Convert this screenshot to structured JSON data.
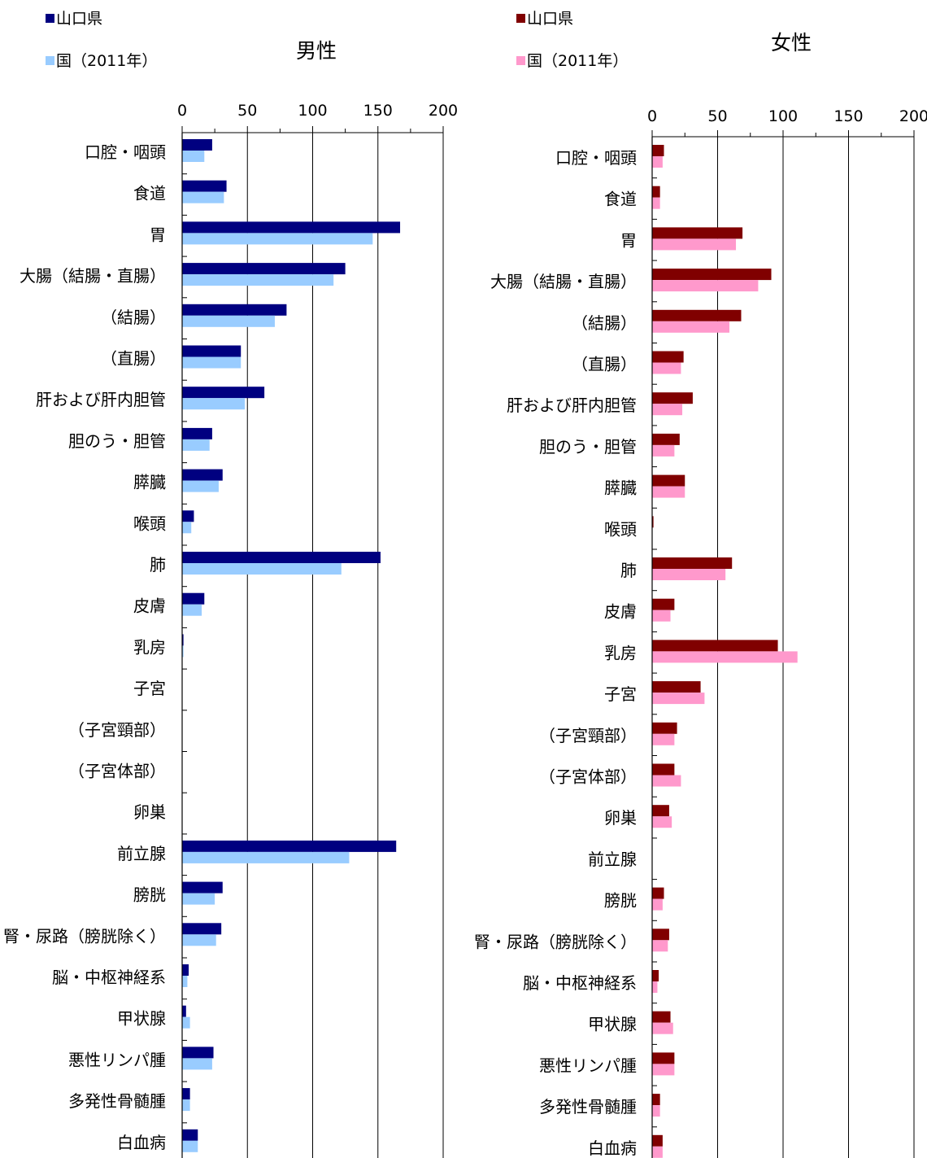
{
  "categories": [
    "口腔・咽頭",
    "食道",
    "胃",
    "大腸（結腸・直腸）",
    "（結腸）",
    "（直腸）",
    "肝および肝内胆管",
    "胆のう・胆管",
    "膵臓",
    "喉頭",
    "肺",
    "皮膚",
    "乳房",
    "子宮",
    "（子宮頸部）",
    "（子宮体部）",
    "卵巣",
    "前立腺",
    "膀胱",
    "腎・尿路（膀胱除く）",
    "脳・中枢神経系",
    "甲状腺",
    "悪性リンパ腫",
    "多発性骨髄腫",
    "白血病"
  ],
  "chart_data": [
    {
      "type": "bar",
      "orientation": "horizontal",
      "title": "男性",
      "xlim": [
        0,
        200
      ],
      "xticks": [
        0,
        50,
        100,
        150,
        200
      ],
      "legend_position": "top-left",
      "series": [
        {
          "name": "山口県",
          "color": "#000080",
          "values": [
            23,
            34,
            167,
            125,
            80,
            45,
            63,
            23,
            31,
            9,
            152,
            17,
            1,
            0,
            0,
            0,
            0,
            164,
            31,
            30,
            5,
            3,
            24,
            6,
            12
          ]
        },
        {
          "name": "国（2011年）",
          "color": "#99ccff",
          "values": [
            17,
            32,
            146,
            116,
            71,
            45,
            48,
            21,
            28,
            7,
            122,
            15,
            1,
            0,
            0,
            0,
            0,
            128,
            25,
            26,
            4,
            6,
            23,
            6,
            12
          ]
        }
      ]
    },
    {
      "type": "bar",
      "orientation": "horizontal",
      "title": "女性",
      "xlim": [
        0,
        200
      ],
      "xticks": [
        0,
        50,
        100,
        150,
        200
      ],
      "legend_position": "top-left",
      "series": [
        {
          "name": "山口県",
          "color": "#800000",
          "values": [
            9,
            6,
            69,
            91,
            68,
            24,
            31,
            21,
            25,
            1,
            61,
            17,
            96,
            37,
            19,
            17,
            13,
            0,
            9,
            13,
            5,
            14,
            17,
            6,
            8
          ]
        },
        {
          "name": "国（2011年）",
          "color": "#ff99cc",
          "values": [
            8,
            6,
            64,
            81,
            59,
            22,
            23,
            17,
            25,
            0,
            56,
            14,
            111,
            40,
            17,
            22,
            15,
            0,
            8,
            12,
            4,
            16,
            17,
            6,
            8
          ]
        }
      ]
    }
  ]
}
